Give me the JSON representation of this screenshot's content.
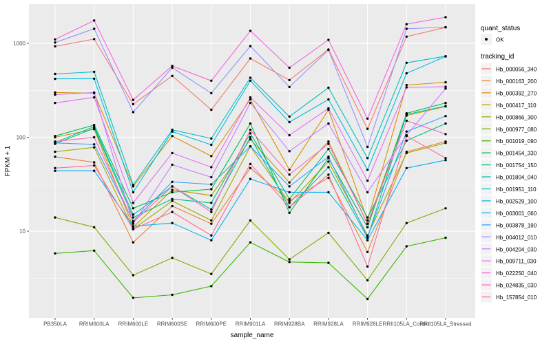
{
  "chart_data": {
    "type": "line",
    "title": "",
    "xlabel": "sample_name",
    "ylabel": "FPKM + 1",
    "y_scale": "log10",
    "y_ticks": [
      10,
      100,
      1000
    ],
    "y_minor_ticks": [
      3.162,
      31.623,
      316.228
    ],
    "ylim": [
      1.2,
      2600
    ],
    "grid": true,
    "legend_position": "right",
    "panel_bg": "#EBEBEB",
    "grid_color": "#FFFFFF",
    "point_color": "#000000",
    "quant_status_legend": {
      "title": "quant_status",
      "items": [
        "OK"
      ],
      "marker": "point"
    },
    "tracking_legend_title": "tracking_id",
    "categories": [
      "PB350LA",
      "RRIM600LA",
      "RRIM600LE",
      "RRIM600SE",
      "RRIM600PE",
      "RRIM901LA",
      "RRIM928BA",
      "RRIM928LA",
      "RRIM928LE",
      "RRII105LA_Control",
      "RRII105LA_Stressed"
    ],
    "series": [
      {
        "name": "Hb_000056_340",
        "color": "#F8766D",
        "values": [
          930,
          1110,
          225,
          450,
          196,
          690,
          406,
          860,
          123,
          1180,
          1480
        ]
      },
      {
        "name": "Hb_000163_200",
        "color": "#EA8331",
        "values": [
          62,
          54,
          7.6,
          18.5,
          12,
          47,
          21,
          37,
          6.0,
          70,
          90
        ]
      },
      {
        "name": "Hb_000392_270",
        "color": "#D89000",
        "values": [
          300,
          295,
          30,
          103,
          63,
          253,
          45,
          196,
          13,
          360,
          385
        ]
      },
      {
        "name": "Hb_000417_110",
        "color": "#C09B00",
        "values": [
          100,
          122,
          11,
          27.5,
          24,
          95,
          33,
          90,
          12,
          170,
          213
        ]
      },
      {
        "name": "Hb_000866_300",
        "color": "#A3A500",
        "values": [
          70,
          78,
          10.5,
          21,
          13,
          80,
          20,
          55,
          9,
          68,
          87
        ]
      },
      {
        "name": "Hb_000977_080",
        "color": "#7CAE00",
        "values": [
          14,
          11,
          3.4,
          5.2,
          3.5,
          13,
          5.0,
          9.6,
          3.0,
          12.2,
          17.5
        ]
      },
      {
        "name": "Hb_001019_090",
        "color": "#39B600",
        "values": [
          5.8,
          6.2,
          1.95,
          2.1,
          2.6,
          7.6,
          4.7,
          4.6,
          1.9,
          6.9,
          8.5
        ]
      },
      {
        "name": "Hb_001454_330",
        "color": "#00BB4E",
        "values": [
          103,
          135,
          17.5,
          26,
          28,
          140,
          15.7,
          60,
          11,
          180,
          232
        ]
      },
      {
        "name": "Hb_001754_150",
        "color": "#00BF7D",
        "values": [
          85,
          125,
          14,
          22,
          20,
          110,
          22,
          75,
          14,
          92,
          140
        ]
      },
      {
        "name": "Hb_001804_040",
        "color": "#00C1A3",
        "values": [
          88,
          130,
          15,
          30,
          17,
          100,
          18,
          48,
          8.5,
          175,
          215
        ]
      },
      {
        "name": "Hb_001951_110",
        "color": "#00BFC4",
        "values": [
          472,
          497,
          31,
          120,
          97,
          430,
          166,
          337,
          60,
          620,
          730
        ]
      },
      {
        "name": "Hb_002529_100",
        "color": "#00BAE0",
        "values": [
          419,
          420,
          26,
          115,
          83,
          400,
          145,
          253,
          45,
          480,
          725
        ]
      },
      {
        "name": "Hb_003001_060",
        "color": "#00B0F6",
        "values": [
          44,
          44,
          11.3,
          12.2,
          8.0,
          36,
          26,
          26,
          8.0,
          47,
          57
        ]
      },
      {
        "name": "Hb_003878_190",
        "color": "#35A2FF",
        "values": [
          87,
          84,
          12.8,
          33.5,
          31.5,
          80,
          30,
          62,
          8.6,
          115,
          168
        ]
      },
      {
        "name": "Hb_004012_010",
        "color": "#9590FF",
        "values": [
          1020,
          1430,
          185,
          550,
          295,
          935,
          343,
          850,
          79,
          1430,
          1490
        ]
      },
      {
        "name": "Hb_004204_030",
        "color": "#C77CFF",
        "values": [
          284,
          300,
          12,
          51,
          37.5,
          232,
          71,
          140,
          26,
          105,
          330
        ]
      },
      {
        "name": "Hb_009711_030",
        "color": "#E76BF3",
        "values": [
          232,
          266,
          20,
          68,
          48,
          266,
          105,
          203,
          34.5,
          340,
          345
        ]
      },
      {
        "name": "Hb_022250_040",
        "color": "#FA62DB",
        "values": [
          1100,
          1750,
          250,
          575,
          400,
          1360,
          550,
          1090,
          158,
          1600,
          1900
        ]
      },
      {
        "name": "Hb_024835_030",
        "color": "#FF62BC",
        "values": [
          90,
          100,
          12.5,
          30,
          16,
          120,
          40,
          85,
          12,
          150,
          108
        ]
      },
      {
        "name": "Hb_157854_010",
        "color": "#FF6A98",
        "values": [
          47,
          50,
          10.5,
          16,
          9,
          52,
          18,
          40,
          4.2,
          103,
          60
        ]
      }
    ]
  }
}
